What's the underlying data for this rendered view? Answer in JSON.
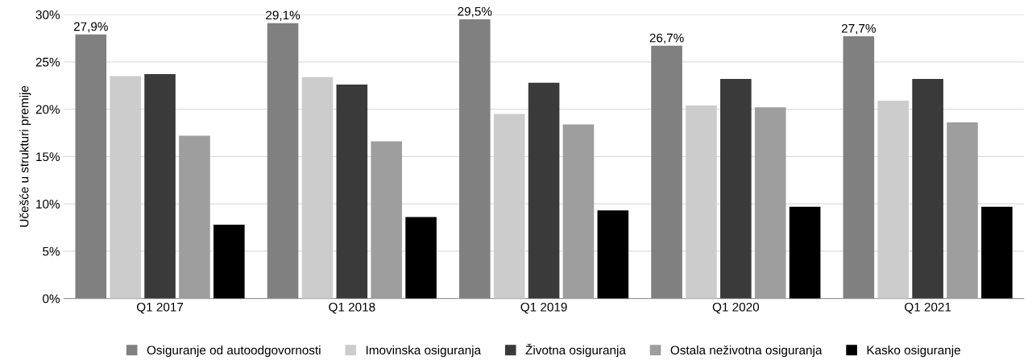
{
  "chart_data": {
    "type": "bar",
    "ylabel": "Učešće u strukturi premije",
    "categories": [
      "Q1 2017",
      "Q1 2018",
      "Q1 2019",
      "Q1 2020",
      "Q1 2021"
    ],
    "series": [
      {
        "name": "Osiguranje od autoodgovornosti",
        "color": "#808080",
        "values": [
          27.9,
          29.1,
          29.5,
          26.7,
          27.7
        ],
        "value_labels": [
          "27,9%",
          "29,1%",
          "29,5%",
          "26,7%",
          "27,7%"
        ]
      },
      {
        "name": "Imovinska osiguranja",
        "color": "#cccccc",
        "values": [
          23.5,
          23.4,
          19.5,
          20.4,
          20.9
        ]
      },
      {
        "name": "Životna osiguranja",
        "color": "#3a3a3a",
        "values": [
          23.7,
          22.6,
          22.8,
          23.2,
          23.2
        ]
      },
      {
        "name": "Ostala neživotna osiguranja",
        "color": "#9e9e9e",
        "values": [
          17.2,
          16.6,
          18.4,
          20.2,
          18.6
        ]
      },
      {
        "name": "Kasko osiguranje",
        "color": "#000000",
        "values": [
          7.8,
          8.6,
          9.3,
          9.7,
          9.7
        ]
      }
    ],
    "ylim": [
      0,
      30
    ],
    "yticks": [
      {
        "value": 0,
        "label": "0%"
      },
      {
        "value": 5,
        "label": "5%"
      },
      {
        "value": 10,
        "label": "10%"
      },
      {
        "value": 15,
        "label": "15%"
      },
      {
        "value": 20,
        "label": "20%"
      },
      {
        "value": 25,
        "label": "25%"
      },
      {
        "value": 30,
        "label": "30%"
      }
    ],
    "grid": "y",
    "legend": "bottom"
  }
}
